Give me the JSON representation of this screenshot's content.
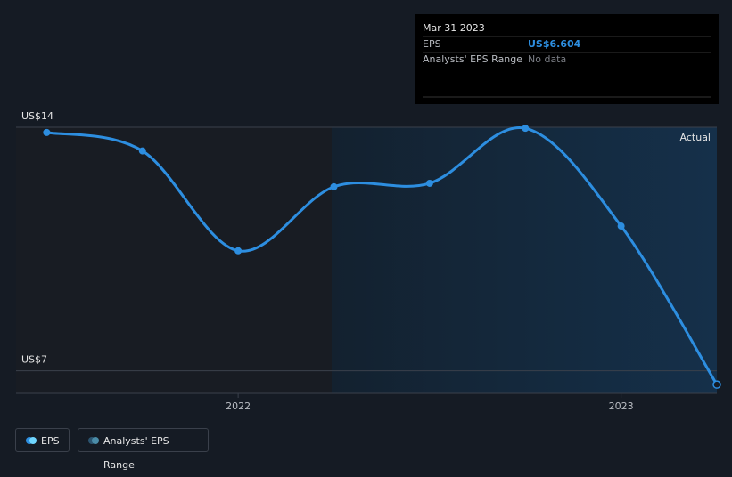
{
  "chart_data": {
    "type": "line",
    "x": [
      2021.5,
      2021.75,
      2022.0,
      2022.25,
      2022.5,
      2022.75,
      2023.0,
      2023.25
    ],
    "series": [
      {
        "name": "EPS",
        "color": "#2d8ee0",
        "values": [
          13.85,
          13.32,
          10.45,
          12.29,
          12.39,
          13.97,
          11.16,
          6.604
        ]
      }
    ],
    "xlim": [
      2021.42,
      2023.25
    ],
    "xticks": [
      2022,
      2023
    ],
    "ylim": [
      6.48,
      14
    ],
    "yticks": [
      {
        "value": 14,
        "label": "US$14"
      },
      {
        "value": 7,
        "label": "US$7"
      }
    ],
    "annotation": "Actual",
    "tooltip": {
      "date": "Mar 31 2023",
      "rows": [
        {
          "label": "EPS",
          "value": "US$6.604"
        },
        {
          "label": "Analysts' EPS Range",
          "value": "No data"
        }
      ]
    },
    "legend_extra": "Analysts' EPS Range"
  }
}
